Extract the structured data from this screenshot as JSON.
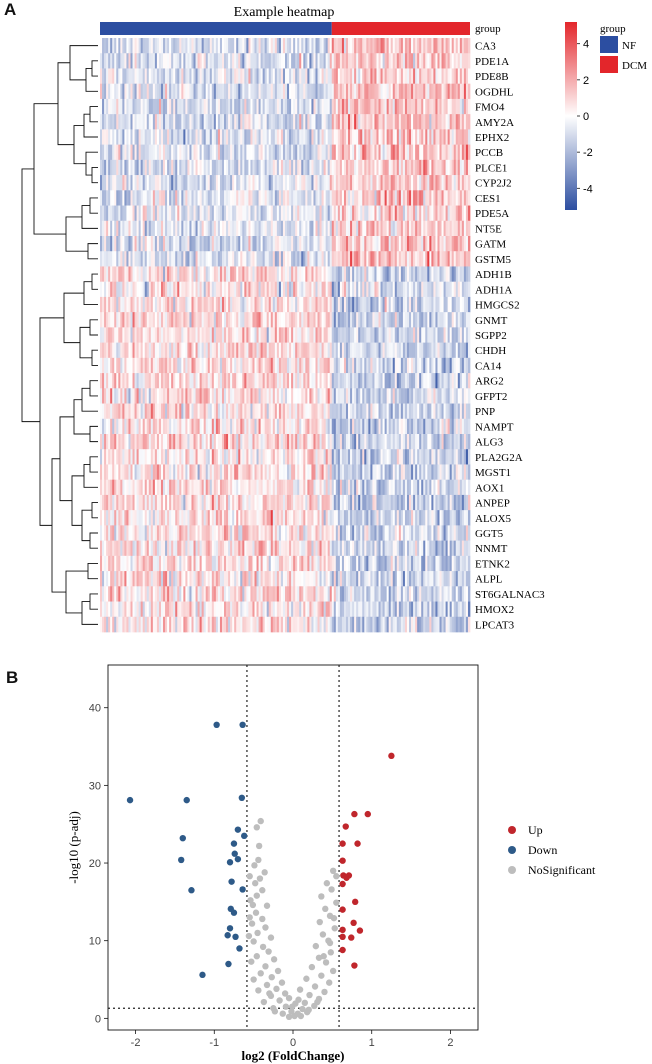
{
  "panels": {
    "a": "A",
    "b": "B"
  },
  "colors": {
    "nf": "#2c4ea1",
    "dcm": "#e3262b",
    "high": "#e3262b",
    "mid": "#ffffff",
    "low": "#2c4ea1",
    "up": "#c0262c",
    "down": "#2e5a88",
    "nosig": "#bdbdbd"
  },
  "chart_data": [
    {
      "type": "heatmap",
      "title": "Example heatmap",
      "annotation_label": "group",
      "groups": [
        {
          "name": "NF",
          "color": "#2c4ea1"
        },
        {
          "name": "DCM",
          "color": "#e3262b"
        }
      ],
      "legend": {
        "title": "group",
        "entries": [
          "NF",
          "DCM"
        ]
      },
      "colorbar": {
        "min": -5.2,
        "max": 5.2,
        "ticks": [
          4,
          2,
          0,
          -2,
          -4
        ]
      },
      "columns": {
        "NF": 114,
        "DCM": 68
      },
      "rows": [
        {
          "gene": "CA3",
          "nf_mean": -0.9,
          "dcm_mean": 1.4
        },
        {
          "gene": "PDE1A",
          "nf_mean": -0.8,
          "dcm_mean": 1.3
        },
        {
          "gene": "PDE8B",
          "nf_mean": -0.7,
          "dcm_mean": 1.2
        },
        {
          "gene": "OGDHL",
          "nf_mean": -0.8,
          "dcm_mean": 1.3
        },
        {
          "gene": "FMO4",
          "nf_mean": -0.7,
          "dcm_mean": 1.2
        },
        {
          "gene": "AMY2A",
          "nf_mean": -0.8,
          "dcm_mean": 1.3
        },
        {
          "gene": "EPHX2",
          "nf_mean": -0.7,
          "dcm_mean": 1.2
        },
        {
          "gene": "PCCB",
          "nf_mean": -0.8,
          "dcm_mean": 1.4
        },
        {
          "gene": "PLCE1",
          "nf_mean": -0.8,
          "dcm_mean": 1.3
        },
        {
          "gene": "CYP2J2",
          "nf_mean": -0.8,
          "dcm_mean": 1.3
        },
        {
          "gene": "CES1",
          "nf_mean": -0.7,
          "dcm_mean": 1.2
        },
        {
          "gene": "PDE5A",
          "nf_mean": -0.8,
          "dcm_mean": 1.3
        },
        {
          "gene": "NT5E",
          "nf_mean": -0.7,
          "dcm_mean": 1.2
        },
        {
          "gene": "GATM",
          "nf_mean": -0.8,
          "dcm_mean": 1.3
        },
        {
          "gene": "GSTM5",
          "nf_mean": -0.7,
          "dcm_mean": 1.2
        },
        {
          "gene": "ADH1B",
          "nf_mean": 0.7,
          "dcm_mean": -1.2
        },
        {
          "gene": "ADH1A",
          "nf_mean": 0.7,
          "dcm_mean": -1.2
        },
        {
          "gene": "HMGCS2",
          "nf_mean": 0.7,
          "dcm_mean": -1.2
        },
        {
          "gene": "GNMT",
          "nf_mean": 0.8,
          "dcm_mean": -1.3
        },
        {
          "gene": "SGPP2",
          "nf_mean": 0.7,
          "dcm_mean": -1.2
        },
        {
          "gene": "CHDH",
          "nf_mean": 0.7,
          "dcm_mean": -1.2
        },
        {
          "gene": "CA14",
          "nf_mean": 0.7,
          "dcm_mean": -1.2
        },
        {
          "gene": "ARG2",
          "nf_mean": 0.7,
          "dcm_mean": -1.2
        },
        {
          "gene": "GFPT2",
          "nf_mean": 0.7,
          "dcm_mean": -1.2
        },
        {
          "gene": "PNP",
          "nf_mean": 0.7,
          "dcm_mean": -1.2
        },
        {
          "gene": "NAMPT",
          "nf_mean": 0.7,
          "dcm_mean": -1.2
        },
        {
          "gene": "ALG3",
          "nf_mean": 0.7,
          "dcm_mean": -1.2
        },
        {
          "gene": "PLA2G2A",
          "nf_mean": 0.7,
          "dcm_mean": -1.2
        },
        {
          "gene": "MGST1",
          "nf_mean": 0.7,
          "dcm_mean": -1.2
        },
        {
          "gene": "AOX1",
          "nf_mean": 0.7,
          "dcm_mean": -1.2
        },
        {
          "gene": "ANPEP",
          "nf_mean": 0.7,
          "dcm_mean": -1.3
        },
        {
          "gene": "ALOX5",
          "nf_mean": 0.7,
          "dcm_mean": -1.3
        },
        {
          "gene": "GGT5",
          "nf_mean": 0.7,
          "dcm_mean": -1.3
        },
        {
          "gene": "NNMT",
          "nf_mean": 0.7,
          "dcm_mean": -1.3
        },
        {
          "gene": "ETNK2",
          "nf_mean": 0.7,
          "dcm_mean": -1.2
        },
        {
          "gene": "ALPL",
          "nf_mean": 0.7,
          "dcm_mean": -1.2
        },
        {
          "gene": "ST6GALNAC3",
          "nf_mean": 0.7,
          "dcm_mean": -1.2
        },
        {
          "gene": "HMOX2",
          "nf_mean": 0.7,
          "dcm_mean": -1.2
        },
        {
          "gene": "LPCAT3",
          "nf_mean": 0.7,
          "dcm_mean": -1.2
        }
      ]
    },
    {
      "type": "scatter",
      "title": "",
      "xlabel": "log2 (FoldChange)",
      "ylabel": "-log10 (p-adj)",
      "xlim": [
        -2.35,
        2.35
      ],
      "ylim": [
        -1.5,
        45.5
      ],
      "xticks": [
        -2,
        -1,
        0,
        1,
        2
      ],
      "yticks": [
        0,
        10,
        20,
        30,
        40
      ],
      "thresholds": {
        "x": [
          -0.585,
          0.585
        ],
        "y": 1.3
      },
      "legend": {
        "position": "right",
        "entries": [
          "Up",
          "Down",
          "NoSignificant"
        ]
      },
      "series": [
        {
          "name": "Up",
          "color": "#c0262c",
          "points": [
            [
              1.25,
              33.8
            ],
            [
              0.78,
              26.3
            ],
            [
              0.95,
              26.3
            ],
            [
              0.67,
              24.7
            ],
            [
              0.63,
              22.5
            ],
            [
              0.82,
              22.5
            ],
            [
              0.63,
              20.3
            ],
            [
              0.64,
              18.4
            ],
            [
              0.68,
              18.1
            ],
            [
              0.71,
              18.4
            ],
            [
              0.63,
              17.3
            ],
            [
              0.79,
              15.0
            ],
            [
              0.63,
              14.0
            ],
            [
              0.77,
              12.3
            ],
            [
              0.63,
              11.4
            ],
            [
              0.85,
              11.3
            ],
            [
              0.63,
              10.5
            ],
            [
              0.74,
              10.4
            ],
            [
              0.63,
              8.8
            ],
            [
              0.78,
              6.8
            ]
          ]
        },
        {
          "name": "Down",
          "color": "#2e5a88",
          "points": [
            [
              -0.97,
              37.8
            ],
            [
              -0.64,
              37.8
            ],
            [
              -2.07,
              28.1
            ],
            [
              -1.35,
              28.1
            ],
            [
              -0.65,
              28.4
            ],
            [
              -0.7,
              24.3
            ],
            [
              -0.62,
              23.5
            ],
            [
              -1.4,
              23.2
            ],
            [
              -0.75,
              22.5
            ],
            [
              -0.74,
              21.2
            ],
            [
              -0.8,
              20.1
            ],
            [
              -1.42,
              20.4
            ],
            [
              -0.7,
              20.5
            ],
            [
              -0.78,
              17.6
            ],
            [
              -0.64,
              16.6
            ],
            [
              -1.29,
              16.5
            ],
            [
              -0.79,
              14.1
            ],
            [
              -0.75,
              13.6
            ],
            [
              -0.8,
              11.6
            ],
            [
              -0.83,
              10.7
            ],
            [
              -0.73,
              10.5
            ],
            [
              -0.68,
              9.0
            ],
            [
              -0.82,
              7.0
            ],
            [
              -1.15,
              5.6
            ]
          ]
        },
        {
          "name": "NoSignificant",
          "color": "#bdbdbd",
          "points": [
            [
              -0.41,
              25.4
            ],
            [
              -0.46,
              24.6
            ],
            [
              -0.43,
              22.2
            ],
            [
              -0.44,
              20.4
            ],
            [
              -0.49,
              19.7
            ],
            [
              -0.36,
              18.8
            ],
            [
              -0.42,
              18.0
            ],
            [
              -0.48,
              17.4
            ],
            [
              -0.39,
              16.5
            ],
            [
              -0.46,
              15.8
            ],
            [
              -0.51,
              14.6
            ],
            [
              -0.33,
              14.5
            ],
            [
              -0.47,
              13.6
            ],
            [
              -0.39,
              12.8
            ],
            [
              -0.52,
              12.2
            ],
            [
              -0.35,
              11.7
            ],
            [
              -0.45,
              11.0
            ],
            [
              -0.28,
              10.4
            ],
            [
              -0.5,
              9.9
            ],
            [
              -0.38,
              9.2
            ],
            [
              -0.31,
              8.6
            ],
            [
              -0.46,
              8.0
            ],
            [
              -0.24,
              7.6
            ],
            [
              -0.53,
              7.3
            ],
            [
              -0.35,
              6.7
            ],
            [
              -0.19,
              6.1
            ],
            [
              -0.41,
              5.8
            ],
            [
              -0.27,
              5.3
            ],
            [
              -0.5,
              5.0
            ],
            [
              -0.14,
              4.6
            ],
            [
              -0.33,
              4.3
            ],
            [
              -0.21,
              3.8
            ],
            [
              -0.44,
              3.6
            ],
            [
              -0.1,
              3.2
            ],
            [
              -0.28,
              2.9
            ],
            [
              -0.05,
              2.6
            ],
            [
              -0.17,
              2.3
            ],
            [
              -0.37,
              2.1
            ],
            [
              0.03,
              1.9
            ],
            [
              -0.09,
              1.5
            ],
            [
              -0.25,
              1.3
            ],
            [
              0.12,
              1.2
            ],
            [
              -0.02,
              0.9
            ],
            [
              0.06,
              0.6
            ],
            [
              -0.13,
              0.6
            ],
            [
              0.18,
              0.8
            ],
            [
              0.02,
              0.3
            ],
            [
              -0.05,
              0.2
            ],
            [
              0.1,
              0.3
            ],
            [
              0.27,
              1.6
            ],
            [
              0.15,
              2.0
            ],
            [
              0.33,
              2.5
            ],
            [
              0.21,
              3.0
            ],
            [
              0.4,
              3.4
            ],
            [
              0.09,
              3.7
            ],
            [
              0.28,
              4.1
            ],
            [
              0.46,
              4.6
            ],
            [
              0.17,
              5.1
            ],
            [
              0.36,
              5.5
            ],
            [
              0.51,
              6.1
            ],
            [
              0.24,
              6.6
            ],
            [
              0.42,
              7.2
            ],
            [
              0.33,
              7.8
            ],
            [
              0.48,
              8.5
            ],
            [
              0.29,
              9.3
            ],
            [
              0.45,
              10.0
            ],
            [
              0.38,
              10.8
            ],
            [
              0.53,
              11.6
            ],
            [
              0.34,
              12.4
            ],
            [
              0.47,
              13.2
            ],
            [
              0.41,
              14.1
            ],
            [
              0.55,
              14.9
            ],
            [
              0.36,
              15.7
            ],
            [
              0.49,
              16.6
            ],
            [
              0.43,
              17.4
            ],
            [
              0.55,
              18.3
            ],
            [
              0.51,
              19.0
            ],
            [
              0.39,
              8.0
            ],
            [
              0.47,
              9.7
            ],
            [
              0.52,
              12.9
            ],
            [
              -0.56,
              10.6
            ],
            [
              -0.55,
              13.0
            ],
            [
              -0.54,
              15.2
            ],
            [
              -0.55,
              18.3
            ],
            [
              -0.3,
              3.2
            ],
            [
              0.31,
              2.1
            ],
            [
              0.2,
              1.1
            ],
            [
              -0.23,
              0.9
            ],
            [
              -0.01,
              1.5
            ],
            [
              0.07,
              2.4
            ]
          ]
        }
      ]
    }
  ]
}
